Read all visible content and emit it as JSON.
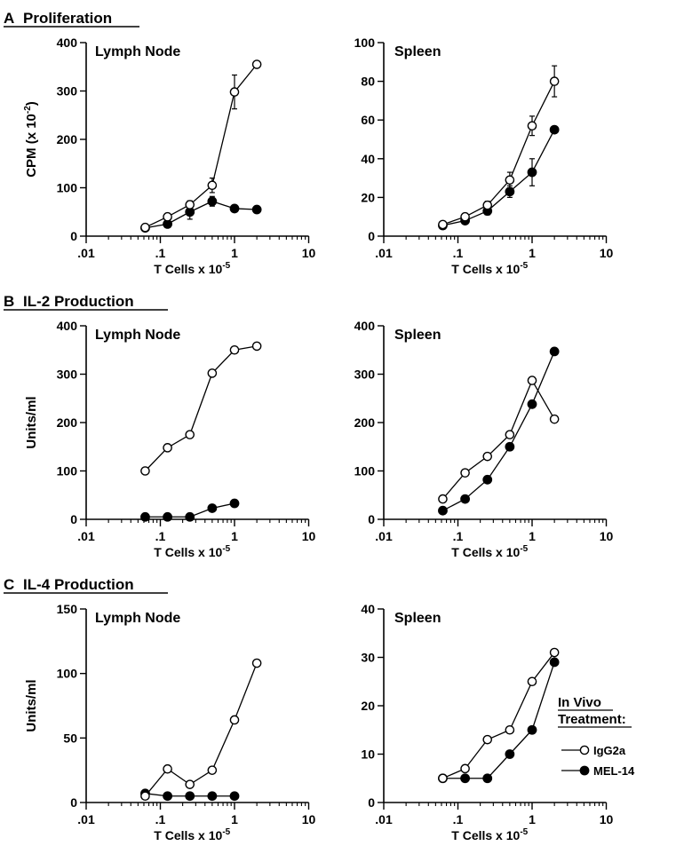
{
  "sections": [
    {
      "letter": "A",
      "title": "Proliferation"
    },
    {
      "letter": "B",
      "title": "IL-2 Production"
    },
    {
      "letter": "C",
      "title": "IL-4 Production"
    }
  ],
  "legend": {
    "title_line1": "In Vivo",
    "title_line2": "Treatment:",
    "items": [
      {
        "label": "IgG2a",
        "marker": "open-circle"
      },
      {
        "label": "MEL-14",
        "marker": "filled-circle"
      }
    ]
  },
  "colors": {
    "ink": "#000000",
    "background": "#ffffff"
  },
  "chart_data": [
    {
      "type": "line",
      "panel_label": "Lymph Node",
      "ylabel": "CPM (x 10",
      "ylabel_exp": "-2",
      "ylabel_tail": ")",
      "xlabel": "T Cells x 10",
      "xlabel_exp": "-5",
      "xscale": "log",
      "xlim": [
        0.01,
        10
      ],
      "x_ticks": [
        ".01",
        ".1",
        "1",
        "10"
      ],
      "ylim": [
        0,
        400
      ],
      "y_ticks": [
        0,
        100,
        200,
        300,
        400
      ],
      "series": [
        {
          "name": "IgG2a",
          "marker": "open",
          "x": [
            0.0625,
            0.125,
            0.25,
            0.5,
            1,
            2
          ],
          "y": [
            18,
            40,
            65,
            105,
            298,
            355
          ],
          "err": [
            0,
            5,
            8,
            15,
            35,
            0
          ]
        },
        {
          "name": "MEL-14",
          "marker": "filled",
          "x": [
            0.0625,
            0.125,
            0.25,
            0.5,
            1,
            2
          ],
          "y": [
            17,
            25,
            50,
            72,
            57,
            55
          ],
          "err": [
            0,
            4,
            15,
            10,
            0,
            0
          ]
        }
      ]
    },
    {
      "type": "line",
      "panel_label": "Spleen",
      "ylabel": "",
      "xlabel": "T Cells x 10",
      "xlabel_exp": "-5",
      "xscale": "log",
      "xlim": [
        0.01,
        10
      ],
      "x_ticks": [
        ".01",
        ".1",
        "1",
        "10"
      ],
      "ylim": [
        0,
        100
      ],
      "y_ticks": [
        0,
        20,
        40,
        60,
        80,
        100
      ],
      "series": [
        {
          "name": "IgG2a",
          "marker": "open",
          "x": [
            0.0625,
            0.125,
            0.25,
            0.5,
            1,
            2
          ],
          "y": [
            6,
            10,
            16,
            29,
            57,
            80
          ],
          "err": [
            0,
            1,
            2,
            4,
            5,
            8
          ]
        },
        {
          "name": "MEL-14",
          "marker": "filled",
          "x": [
            0.0625,
            0.125,
            0.25,
            0.5,
            1,
            2
          ],
          "y": [
            5.5,
            8,
            13,
            23,
            33,
            55
          ],
          "err": [
            0,
            1,
            2,
            3,
            7,
            0
          ]
        }
      ]
    },
    {
      "type": "line",
      "panel_label": "Lymph Node",
      "ylabel": "Units/ml",
      "xlabel": "T Cells x 10",
      "xlabel_exp": "-5",
      "xscale": "log",
      "xlim": [
        0.01,
        10
      ],
      "x_ticks": [
        ".01",
        ".1",
        "1",
        "10"
      ],
      "ylim": [
        0,
        400
      ],
      "y_ticks": [
        0,
        100,
        200,
        300,
        400
      ],
      "series": [
        {
          "name": "IgG2a",
          "marker": "open",
          "x": [
            0.0625,
            0.125,
            0.25,
            0.5,
            1,
            2
          ],
          "y": [
            100,
            148,
            175,
            302,
            350,
            358
          ]
        },
        {
          "name": "MEL-14",
          "marker": "filled",
          "x": [
            0.0625,
            0.125,
            0.25,
            0.5,
            1
          ],
          "y": [
            5,
            5,
            5,
            23,
            33
          ]
        }
      ]
    },
    {
      "type": "line",
      "panel_label": "Spleen",
      "ylabel": "",
      "xlabel": "T Cells x 10",
      "xlabel_exp": "-5",
      "xscale": "log",
      "xlim": [
        0.01,
        10
      ],
      "x_ticks": [
        ".01",
        ".1",
        "1",
        "10"
      ],
      "ylim": [
        0,
        400
      ],
      "y_ticks": [
        0,
        100,
        200,
        300,
        400
      ],
      "series": [
        {
          "name": "IgG2a",
          "marker": "open",
          "x": [
            0.0625,
            0.125,
            0.25,
            0.5,
            1,
            2
          ],
          "y": [
            42,
            96,
            130,
            175,
            287,
            207
          ]
        },
        {
          "name": "MEL-14",
          "marker": "filled",
          "x": [
            0.0625,
            0.125,
            0.25,
            0.5,
            1,
            2
          ],
          "y": [
            18,
            42,
            82,
            150,
            238,
            347
          ]
        }
      ]
    },
    {
      "type": "line",
      "panel_label": "Lymph Node",
      "ylabel": "Units/ml",
      "xlabel": "T Cells x 10",
      "xlabel_exp": "-5",
      "xscale": "log",
      "xlim": [
        0.01,
        10
      ],
      "x_ticks": [
        ".01",
        ".1",
        "1",
        "10"
      ],
      "ylim": [
        0,
        150
      ],
      "y_ticks": [
        0,
        50,
        100,
        150
      ],
      "series": [
        {
          "name": "IgG2a",
          "marker": "open",
          "x": [
            0.0625,
            0.125,
            0.25,
            0.5,
            1,
            2
          ],
          "y": [
            5,
            26,
            14,
            25,
            64,
            108
          ]
        },
        {
          "name": "MEL-14",
          "marker": "filled",
          "x": [
            0.0625,
            0.125,
            0.25,
            0.5,
            1
          ],
          "y": [
            7,
            5,
            5,
            5,
            5
          ]
        }
      ]
    },
    {
      "type": "line",
      "panel_label": "Spleen",
      "ylabel": "",
      "xlabel": "T Cells x 10",
      "xlabel_exp": "-5",
      "xscale": "log",
      "xlim": [
        0.01,
        10
      ],
      "x_ticks": [
        ".01",
        ".1",
        "1",
        "10"
      ],
      "ylim": [
        0,
        40
      ],
      "y_ticks": [
        0,
        10,
        20,
        30,
        40
      ],
      "series": [
        {
          "name": "IgG2a",
          "marker": "open",
          "x": [
            0.0625,
            0.125,
            0.25,
            0.5,
            1,
            2
          ],
          "y": [
            5,
            7,
            13,
            15,
            25,
            31
          ]
        },
        {
          "name": "MEL-14",
          "marker": "filled",
          "x": [
            0.0625,
            0.125,
            0.25,
            0.5,
            1,
            2
          ],
          "y": [
            5,
            5,
            5,
            10,
            15,
            29
          ]
        }
      ]
    }
  ]
}
